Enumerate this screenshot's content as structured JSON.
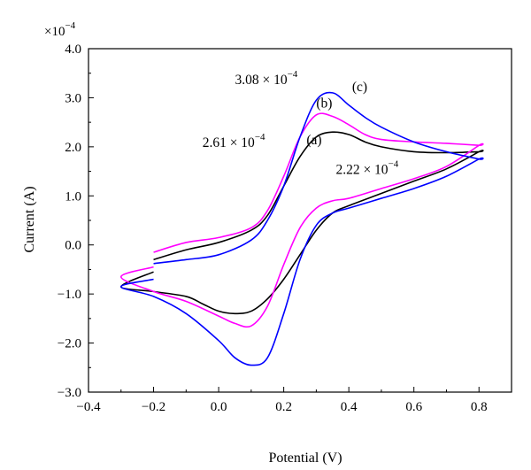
{
  "chart_data": {
    "type": "line",
    "title": "",
    "xlabel": "Potential (V)",
    "ylabel": "Current (A)",
    "y_multiplier": {
      "base": "×10",
      "exponent": "−4"
    },
    "xlim": [
      -0.4,
      0.9
    ],
    "ylim": [
      -3.0,
      4.0
    ],
    "x_ticks": [
      {
        "value": -0.4,
        "label": "−0.4"
      },
      {
        "value": -0.2,
        "label": "−0.2"
      },
      {
        "value": 0.0,
        "label": "0.0"
      },
      {
        "value": 0.2,
        "label": "0.2"
      },
      {
        "value": 0.4,
        "label": "0.4"
      },
      {
        "value": 0.6,
        "label": "0.6"
      },
      {
        "value": 0.8,
        "label": "0.8"
      }
    ],
    "y_ticks": [
      {
        "value": -3.0,
        "label": "−3.0"
      },
      {
        "value": -2.0,
        "label": "−2.0"
      },
      {
        "value": -1.0,
        "label": "−1.0"
      },
      {
        "value": 0.0,
        "label": "0.0"
      },
      {
        "value": 1.0,
        "label": "1.0"
      },
      {
        "value": 2.0,
        "label": "2.0"
      },
      {
        "value": 3.0,
        "label": "3.0"
      },
      {
        "value": 4.0,
        "label": "4.0"
      }
    ],
    "grid": false,
    "legend": "none",
    "series": [
      {
        "label": "(a)",
        "color": "#000000",
        "x": [
          -0.2,
          -0.1,
          0.0,
          0.1,
          0.15,
          0.2,
          0.25,
          0.3,
          0.35,
          0.4,
          0.45,
          0.5,
          0.6,
          0.7,
          0.8,
          0.8,
          0.7,
          0.6,
          0.5,
          0.4,
          0.35,
          0.3,
          0.25,
          0.2,
          0.15,
          0.1,
          0.05,
          0.0,
          -0.05,
          -0.1,
          -0.2,
          -0.3,
          -0.2
        ],
        "y": [
          -0.3,
          -0.1,
          0.05,
          0.3,
          0.6,
          1.2,
          1.8,
          2.2,
          2.3,
          2.25,
          2.1,
          2.0,
          1.9,
          1.88,
          1.9,
          1.9,
          1.55,
          1.3,
          1.05,
          0.8,
          0.65,
          0.3,
          -0.2,
          -0.7,
          -1.1,
          -1.35,
          -1.4,
          -1.35,
          -1.2,
          -1.05,
          -0.95,
          -0.85,
          -0.55
        ]
      },
      {
        "label": "(b)",
        "color": "#ff00ff",
        "x": [
          -0.2,
          -0.1,
          0.0,
          0.1,
          0.15,
          0.2,
          0.25,
          0.3,
          0.35,
          0.4,
          0.45,
          0.5,
          0.6,
          0.7,
          0.8,
          0.8,
          0.7,
          0.6,
          0.5,
          0.4,
          0.35,
          0.3,
          0.25,
          0.2,
          0.15,
          0.1,
          0.05,
          0.0,
          -0.1,
          -0.2,
          -0.3,
          -0.2
        ],
        "y": [
          -0.15,
          0.05,
          0.15,
          0.35,
          0.7,
          1.4,
          2.2,
          2.65,
          2.62,
          2.45,
          2.25,
          2.15,
          2.1,
          2.07,
          2.03,
          2.03,
          1.6,
          1.35,
          1.15,
          0.95,
          0.9,
          0.75,
          0.35,
          -0.4,
          -1.25,
          -1.65,
          -1.6,
          -1.45,
          -1.15,
          -0.95,
          -0.65,
          -0.45
        ]
      },
      {
        "label": "(c)",
        "color": "#0000ff",
        "x": [
          -0.2,
          -0.1,
          0.0,
          0.1,
          0.15,
          0.2,
          0.25,
          0.3,
          0.35,
          0.4,
          0.45,
          0.5,
          0.6,
          0.7,
          0.8,
          0.8,
          0.7,
          0.6,
          0.5,
          0.4,
          0.35,
          0.3,
          0.25,
          0.2,
          0.15,
          0.1,
          0.05,
          0.0,
          -0.1,
          -0.2,
          -0.3,
          -0.2
        ],
        "y": [
          -0.38,
          -0.3,
          -0.2,
          0.1,
          0.5,
          1.2,
          2.2,
          2.95,
          3.1,
          2.85,
          2.6,
          2.4,
          2.1,
          1.9,
          1.75,
          1.75,
          1.4,
          1.15,
          0.95,
          0.75,
          0.65,
          0.4,
          -0.3,
          -1.4,
          -2.3,
          -2.45,
          -2.3,
          -1.95,
          -1.4,
          -1.05,
          -0.85,
          -0.7
        ]
      }
    ],
    "annotations": [
      {
        "text": "(a)",
        "x": 0.27,
        "y": 2.05
      },
      {
        "text": "(b)",
        "x": 0.3,
        "y": 2.8
      },
      {
        "text": "(c)",
        "x": 0.41,
        "y": 3.13
      },
      {
        "text": "3.08 × 10",
        "sup": "−4",
        "x": 0.05,
        "y": 3.28
      },
      {
        "text": "2.61 × 10",
        "sup": "−4",
        "x": -0.05,
        "y": 2.0
      },
      {
        "text": "2.22 × 10",
        "sup": "−4",
        "x": 0.36,
        "y": 1.45
      }
    ]
  }
}
